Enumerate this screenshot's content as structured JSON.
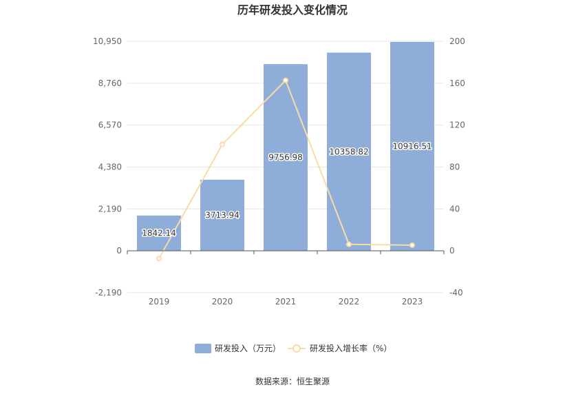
{
  "chart_data": {
    "type": "bar",
    "title": "历年研发投入变化情况",
    "categories": [
      "2019",
      "2020",
      "2021",
      "2022",
      "2023"
    ],
    "series": [
      {
        "name": "研发投入（万元）",
        "type": "bar",
        "axis": "left",
        "color": "#8eadd9",
        "values": [
          1842.14,
          3713.94,
          9756.98,
          10358.82,
          10916.51
        ],
        "labels": [
          "1842.14",
          "3713.94",
          "9756.98",
          "10358.82",
          "10916.51"
        ]
      },
      {
        "name": "研发投入增长率（%）",
        "type": "line",
        "axis": "right",
        "color": "#fbdba4",
        "values": [
          -7.5,
          101.6,
          162.7,
          6.2,
          5.4
        ]
      }
    ],
    "y_left": {
      "ylim": [
        -2190,
        10950
      ],
      "ticks": [
        -2190,
        0,
        2190,
        4380,
        6570,
        8760,
        10950
      ],
      "tick_labels": [
        "-2,190",
        "0",
        "2,190",
        "4,380",
        "6,570",
        "8,760",
        "10,950"
      ]
    },
    "y_right": {
      "ylim": [
        -40,
        200
      ],
      "ticks": [
        -40,
        0,
        40,
        80,
        120,
        160,
        200
      ],
      "tick_labels": [
        "-40",
        "0",
        "40",
        "80",
        "120",
        "160",
        "200"
      ]
    },
    "grid": true,
    "legend_position": "bottom"
  },
  "source_text": "数据来源：恒生聚源"
}
